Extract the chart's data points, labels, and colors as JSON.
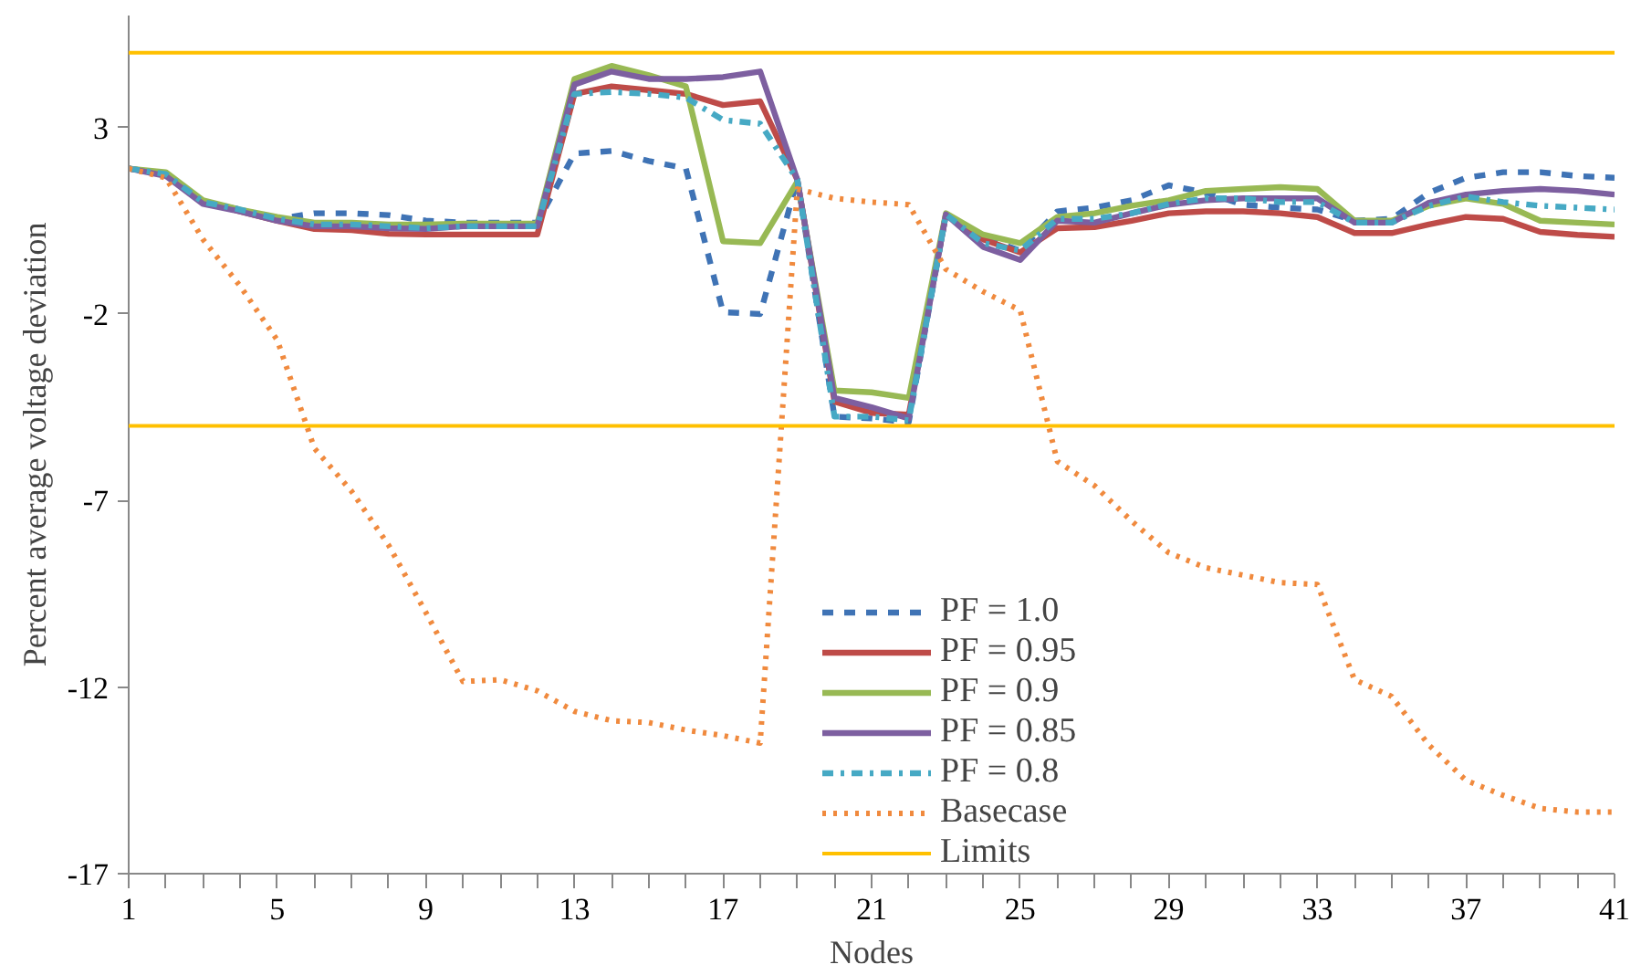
{
  "chart_data": {
    "type": "line",
    "xlabel": "Nodes",
    "ylabel": "Percent average voltage deviation",
    "x": [
      1,
      2,
      3,
      4,
      5,
      6,
      7,
      8,
      9,
      10,
      11,
      12,
      13,
      14,
      15,
      16,
      17,
      18,
      19,
      20,
      21,
      22,
      23,
      24,
      25,
      26,
      27,
      28,
      29,
      30,
      31,
      32,
      33,
      34,
      35,
      36,
      37,
      38,
      39,
      40,
      41
    ],
    "xlim": [
      1,
      41
    ],
    "xticks": [
      1,
      5,
      9,
      13,
      17,
      21,
      25,
      29,
      33,
      37,
      41
    ],
    "ylim": [
      -17,
      6
    ],
    "yticks": [
      -17,
      -12,
      -7,
      -2,
      3
    ],
    "grid": false,
    "legend": "bottom right",
    "marker": "none",
    "series": [
      {
        "name": "PF = 1.0",
        "color": "#3f73b5",
        "line_style": "dashed",
        "values": [
          1.9,
          1.75,
          1.0,
          0.8,
          0.55,
          0.7,
          0.7,
          0.65,
          0.5,
          0.45,
          0.45,
          0.45,
          2.3,
          2.37,
          2.1,
          1.9,
          -1.95,
          -2.0,
          1.6,
          -4.75,
          -4.8,
          -4.9,
          0.67,
          0.05,
          -0.3,
          0.75,
          0.85,
          1.05,
          1.45,
          1.25,
          0.93,
          0.85,
          0.8,
          0.5,
          0.55,
          1.25,
          1.65,
          1.8,
          1.8,
          1.7,
          1.65
        ]
      },
      {
        "name": "PF = 0.95",
        "color": "#be4b48",
        "line_style": "solid",
        "values": [
          1.9,
          1.75,
          1.0,
          0.75,
          0.5,
          0.28,
          0.25,
          0.15,
          0.13,
          0.13,
          0.13,
          0.13,
          3.9,
          4.1,
          4.0,
          3.9,
          3.6,
          3.7,
          1.6,
          -4.35,
          -4.65,
          -4.7,
          0.67,
          0.0,
          -0.35,
          0.3,
          0.33,
          0.5,
          0.7,
          0.75,
          0.75,
          0.7,
          0.6,
          0.17,
          0.17,
          0.4,
          0.6,
          0.55,
          0.2,
          0.12,
          0.07
        ]
      },
      {
        "name": "PF = 0.9",
        "color": "#98b954",
        "line_style": "solid",
        "values": [
          1.9,
          1.8,
          1.05,
          0.8,
          0.6,
          0.45,
          0.45,
          0.4,
          0.4,
          0.42,
          0.42,
          0.42,
          4.3,
          4.65,
          4.4,
          4.1,
          -0.05,
          -0.1,
          1.55,
          -4.05,
          -4.1,
          -4.25,
          0.7,
          0.13,
          -0.1,
          0.6,
          0.7,
          0.9,
          1.05,
          1.3,
          1.35,
          1.4,
          1.35,
          0.5,
          0.5,
          0.9,
          1.1,
          0.95,
          0.5,
          0.45,
          0.4
        ]
      },
      {
        "name": "PF = 0.85",
        "color": "#7d5fa0",
        "line_style": "solid",
        "values": [
          1.9,
          1.7,
          0.95,
          0.75,
          0.5,
          0.35,
          0.35,
          0.3,
          0.28,
          0.35,
          0.35,
          0.35,
          4.15,
          4.5,
          4.3,
          4.3,
          4.35,
          4.5,
          1.6,
          -4.25,
          -4.5,
          -4.8,
          0.67,
          -0.2,
          -0.55,
          0.5,
          0.45,
          0.7,
          0.93,
          1.05,
          1.1,
          1.1,
          1.1,
          0.45,
          0.45,
          0.98,
          1.2,
          1.3,
          1.35,
          1.3,
          1.2
        ]
      },
      {
        "name": "PF = 0.8",
        "color": "#46a9c4",
        "line_style": "dashdot",
        "values": [
          1.9,
          1.75,
          1.0,
          0.8,
          0.55,
          0.4,
          0.4,
          0.35,
          0.3,
          0.35,
          0.35,
          0.35,
          3.9,
          3.95,
          3.9,
          3.8,
          3.2,
          3.1,
          1.6,
          -4.75,
          -4.75,
          -4.85,
          0.67,
          -0.1,
          -0.3,
          0.55,
          0.55,
          0.7,
          0.95,
          1.1,
          1.1,
          1.0,
          1.0,
          0.45,
          0.45,
          0.9,
          1.15,
          1.0,
          0.9,
          0.85,
          0.8
        ]
      },
      {
        "name": "Basecase",
        "color": "#f08a3e",
        "line_style": "dotted",
        "values": [
          1.9,
          1.65,
          0.0,
          -1.25,
          -2.7,
          -5.6,
          -6.75,
          -8.2,
          -10.0,
          -11.85,
          -11.8,
          -12.1,
          -12.65,
          -12.9,
          -12.95,
          -13.15,
          -13.3,
          -13.5,
          1.35,
          1.1,
          1.0,
          0.93,
          -0.8,
          -1.4,
          -1.9,
          -5.95,
          -6.6,
          -7.55,
          -8.4,
          -8.8,
          -9.0,
          -9.2,
          -9.25,
          -11.8,
          -12.25,
          -13.55,
          -14.5,
          -14.9,
          -15.25,
          -15.35,
          -15.35
        ]
      }
    ],
    "ref_lines": [
      {
        "axis": "y",
        "value": 5,
        "label": "Limits",
        "color": "#ffc000",
        "line_style": "solid"
      },
      {
        "axis": "y",
        "value": -5,
        "color": "#ffc000",
        "line_style": "solid"
      }
    ]
  }
}
